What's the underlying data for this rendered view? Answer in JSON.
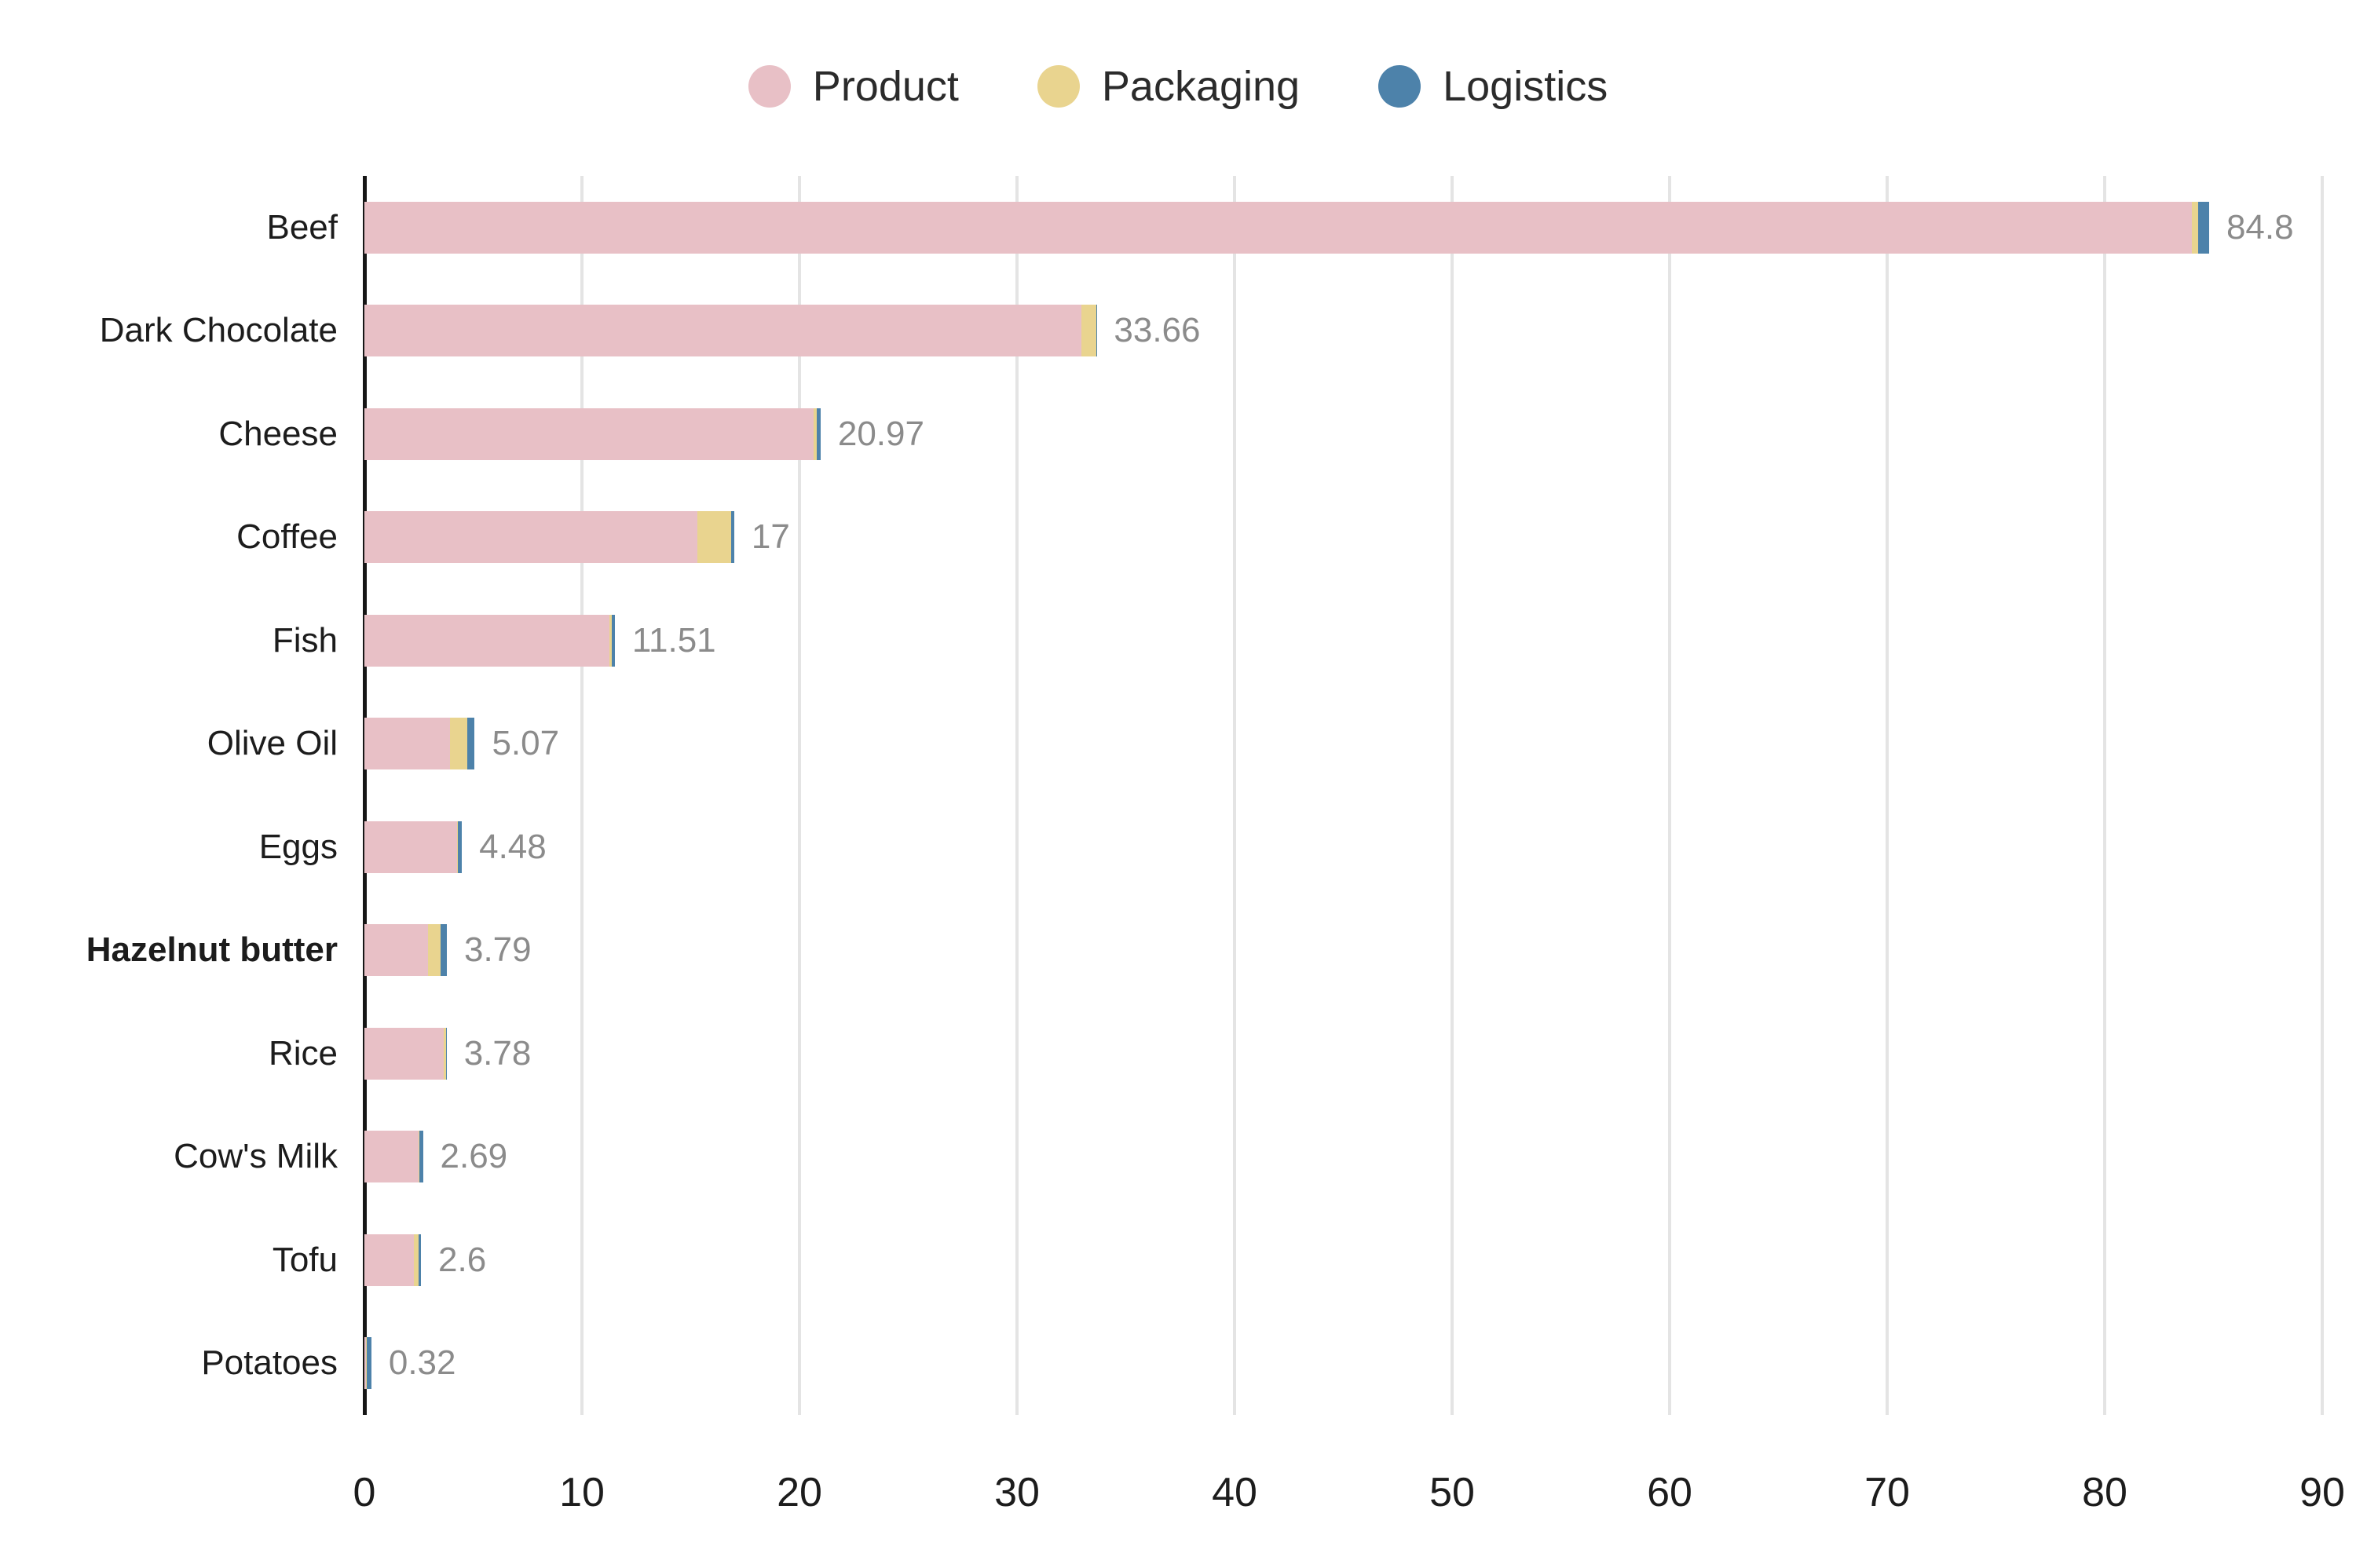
{
  "chart_data": {
    "type": "bar",
    "orientation": "horizontal",
    "stacked": true,
    "title": "",
    "xlabel": "",
    "ylabel": "",
    "xlim": [
      0,
      90
    ],
    "x_ticks": [
      0,
      10,
      20,
      30,
      40,
      50,
      60,
      70,
      80,
      90
    ],
    "grid": "vertical",
    "legend_position": "top",
    "categories": [
      "Beef",
      "Dark Chocolate",
      "Cheese",
      "Coffee",
      "Fish",
      "Olive Oil",
      "Eggs",
      "Hazelnut butter",
      "Rice",
      "Cow's Milk",
      "Tofu",
      "Potatoes"
    ],
    "bold_categories": [
      "Hazelnut butter"
    ],
    "series": [
      {
        "name": "Product",
        "color": "#e8c0c6",
        "values": [
          84.0,
          32.95,
          20.65,
          15.3,
          11.25,
          3.93,
          4.25,
          2.92,
          3.65,
          2.5,
          2.26,
          0.08
        ]
      },
      {
        "name": "Packaging",
        "color": "#e9d48f",
        "values": [
          0.3,
          0.69,
          0.14,
          1.55,
          0.12,
          0.81,
          0.06,
          0.6,
          0.12,
          0.01,
          0.24,
          0.03
        ]
      },
      {
        "name": "Logistics",
        "color": "#4d82aa",
        "values": [
          0.5,
          0.02,
          0.18,
          0.15,
          0.14,
          0.33,
          0.17,
          0.27,
          0.01,
          0.18,
          0.1,
          0.21
        ]
      }
    ],
    "totals": [
      84.8,
      33.66,
      20.97,
      17,
      11.51,
      5.07,
      4.48,
      3.79,
      3.78,
      2.69,
      2.6,
      0.32
    ],
    "total_labels": [
      "84.8",
      "33.66",
      "20.97",
      "17",
      "11.51",
      "5.07",
      "4.48",
      "3.79",
      "3.78",
      "2.69",
      "2.6",
      "0.32"
    ],
    "colors": {
      "grid": "#e4e4e4",
      "axis": "#161616",
      "value_label": "#8b8b8b",
      "tick_label": "#1c1c1c",
      "category_label": "#1c1c1c"
    }
  }
}
